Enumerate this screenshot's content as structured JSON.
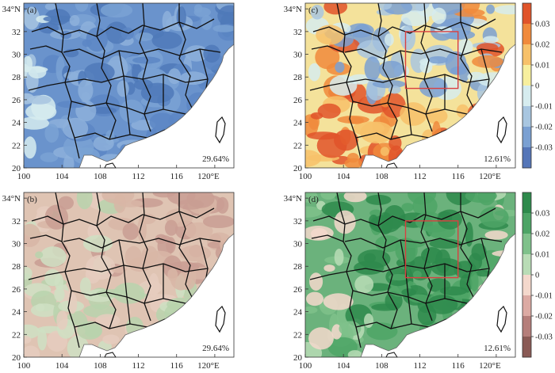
{
  "lon_ticks": [
    "100",
    "104",
    "108",
    "112",
    "116",
    "120°E"
  ],
  "lat_ticks": [
    "20",
    "22",
    "24",
    "26",
    "28",
    "30",
    "32",
    "34°N"
  ],
  "panels": [
    {
      "id": "a",
      "label": "(a)",
      "percent": "29.64%",
      "palette": "blue",
      "highlight": false
    },
    {
      "id": "b",
      "label": "(b)",
      "percent": "29.64%",
      "palette": "pink",
      "highlight": false
    },
    {
      "id": "c",
      "label": "(c)",
      "percent": "12.61%",
      "palette": "diverging_orange_blue",
      "highlight": true
    },
    {
      "id": "d",
      "label": "(d)",
      "percent": "12.61%",
      "palette": "diverging_green_brown",
      "highlight": true
    }
  ],
  "colorbars": [
    {
      "id": "top",
      "for_panel": "c",
      "labels": [
        "0.03",
        "0.02",
        "0.01",
        "0",
        "-0.01",
        "-0.02",
        "-0.03"
      ],
      "colors": [
        "#e0542a",
        "#f08a3c",
        "#f7c16a",
        "#f7ef9e",
        "#d6ecef",
        "#a8c6e0",
        "#7aa0d2",
        "#5576b8"
      ]
    },
    {
      "id": "bottom",
      "for_panel": "d",
      "labels": [
        "0.03",
        "0.02",
        "0.01",
        "0",
        "-0.01",
        "-0.02",
        "-0.03"
      ],
      "colors": [
        "#2e8a4c",
        "#4da466",
        "#7fc18b",
        "#b9dcb6",
        "#f4d8cc",
        "#dcaaa3",
        "#b57e7a",
        "#8a5a55"
      ]
    }
  ],
  "colors": {
    "sea": "#ffffff",
    "border": "#111111",
    "highlight_box": "#d94040",
    "panel_a_fill": "#6a93cc",
    "panel_b_fill": "#dfc4b3",
    "panel_c_fill": "#f4e29b",
    "panel_d_fill": "#6bb27c"
  }
}
